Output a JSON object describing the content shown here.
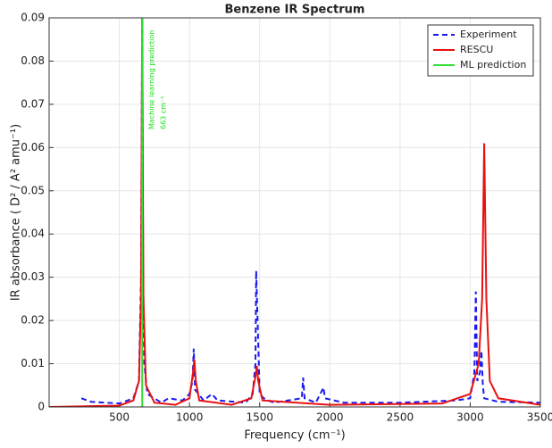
{
  "chart_data": {
    "type": "line",
    "title": "Benzene IR Spectrum",
    "x_label": "Frequency (cm⁻¹)",
    "y_label": "IR absorbance ( D² / A² amu⁻¹)",
    "annotations": [
      "Machine learning prediction",
      "663 cm⁻¹"
    ],
    "annotation_color": "#22dd22",
    "xlim": [
      0,
      3500
    ],
    "xticks": [
      500,
      1000,
      1500,
      2000,
      2500,
      3000,
      3500
    ],
    "ylim": [
      0,
      0.09
    ],
    "yticks": [
      0,
      0.01,
      0.02,
      0.03,
      0.04,
      0.05,
      0.06,
      0.07,
      0.08,
      0.09
    ],
    "grid": true,
    "legend": "upper right",
    "series": [
      {
        "name": "Experiment",
        "color": "#1a1aee",
        "linestyle": "dashed",
        "x": [
          230,
          300,
          400,
          500,
          600,
          640,
          655,
          663,
          670,
          678,
          700,
          800,
          850,
          950,
          1000,
          1022,
          1030,
          1040,
          1100,
          1160,
          1200,
          1400,
          1450,
          1470,
          1475,
          1485,
          1500,
          1530,
          1600,
          1800,
          1810,
          1820,
          1900,
          1955,
          1965,
          2100,
          2500,
          2900,
          3000,
          3030,
          3040,
          3050,
          3070,
          3080,
          3090,
          3100,
          3200,
          3500
        ],
        "values": [
          0.002,
          0.0012,
          0.001,
          0.0008,
          0.002,
          0.006,
          0.03,
          0.09,
          0.03,
          0.01,
          0.003,
          0.001,
          0.002,
          0.0015,
          0.003,
          0.006,
          0.0135,
          0.004,
          0.0015,
          0.003,
          0.0015,
          0.001,
          0.003,
          0.01,
          0.0315,
          0.02,
          0.003,
          0.002,
          0.001,
          0.002,
          0.0068,
          0.002,
          0.001,
          0.0045,
          0.002,
          0.001,
          0.001,
          0.0015,
          0.002,
          0.008,
          0.0267,
          0.006,
          0.008,
          0.013,
          0.005,
          0.002,
          0.0012,
          0.001
        ]
      },
      {
        "name": "RESCU",
        "color": "#e81010",
        "linestyle": "solid",
        "x": [
          0,
          500,
          600,
          640,
          655,
          663,
          672,
          690,
          750,
          900,
          1000,
          1025,
          1035,
          1045,
          1070,
          1300,
          1440,
          1470,
          1480,
          1490,
          1520,
          2000,
          2800,
          3000,
          3060,
          3085,
          3100,
          3115,
          3140,
          3200,
          3500
        ],
        "values": [
          0,
          0.0003,
          0.0015,
          0.006,
          0.025,
          0.09,
          0.025,
          0.005,
          0.001,
          0.0005,
          0.002,
          0.008,
          0.011,
          0.006,
          0.0015,
          0.0005,
          0.002,
          0.007,
          0.0095,
          0.006,
          0.0015,
          0.0005,
          0.0008,
          0.003,
          0.01,
          0.025,
          0.061,
          0.025,
          0.006,
          0.002,
          0.0005
        ]
      },
      {
        "name": "ML prediction",
        "color": "#33dd33",
        "linestyle": "solid",
        "x": [
          663,
          663
        ],
        "values": [
          0,
          0.09
        ]
      }
    ]
  }
}
